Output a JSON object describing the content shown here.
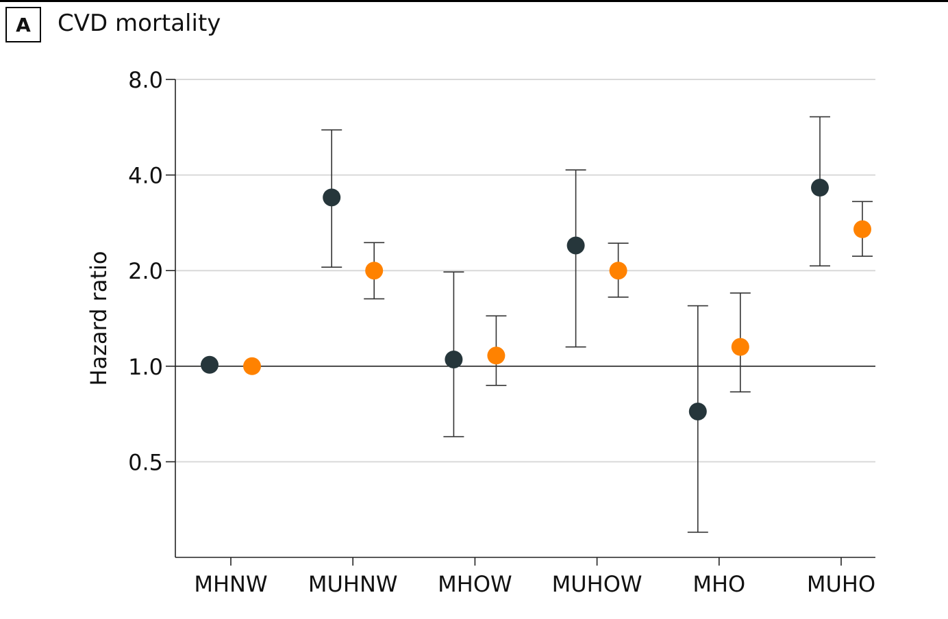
{
  "panel": {
    "label": "A",
    "title": "CVD mortality"
  },
  "chart_data": {
    "type": "scatter",
    "ylabel": "Hazard ratio",
    "xlabel": "",
    "yscale": "log2",
    "ylim": [
      0.25,
      8.0
    ],
    "yticks": [
      {
        "value": 0.5,
        "label": "0.5"
      },
      {
        "value": 1.0,
        "label": "1.0"
      },
      {
        "value": 2.0,
        "label": "2.0"
      },
      {
        "value": 4.0,
        "label": "4.0"
      },
      {
        "value": 8.0,
        "label": "8.0"
      }
    ],
    "reference_line": 1.0,
    "grid": true,
    "categories": [
      "MHNW",
      "MUHNW",
      "MHOW",
      "MUHOW",
      "MHO",
      "MUHO"
    ],
    "series": [
      {
        "color": "#26363b",
        "points": [
          {
            "category": "MHNW",
            "value": 1.01,
            "ci_low": null,
            "ci_high": null
          },
          {
            "category": "MUHNW",
            "value": 3.4,
            "ci_low": 2.05,
            "ci_high": 5.55
          },
          {
            "category": "MHOW",
            "value": 1.05,
            "ci_low": 0.6,
            "ci_high": 1.98
          },
          {
            "category": "MUHOW",
            "value": 2.4,
            "ci_low": 1.15,
            "ci_high": 4.15
          },
          {
            "category": "MHO",
            "value": 0.72,
            "ci_low": 0.3,
            "ci_high": 1.55
          },
          {
            "category": "MUHO",
            "value": 3.65,
            "ci_low": 2.07,
            "ci_high": 6.1
          }
        ]
      },
      {
        "color": "#ff8200",
        "points": [
          {
            "category": "MHNW",
            "value": 1.0,
            "ci_low": null,
            "ci_high": null
          },
          {
            "category": "MUHNW",
            "value": 2.0,
            "ci_low": 1.63,
            "ci_high": 2.45
          },
          {
            "category": "MHOW",
            "value": 1.08,
            "ci_low": 0.87,
            "ci_high": 1.44
          },
          {
            "category": "MUHOW",
            "value": 2.0,
            "ci_low": 1.65,
            "ci_high": 2.44
          },
          {
            "category": "MHO",
            "value": 1.15,
            "ci_low": 0.83,
            "ci_high": 1.7
          },
          {
            "category": "MUHO",
            "value": 2.7,
            "ci_low": 2.22,
            "ci_high": 3.3
          }
        ]
      }
    ]
  }
}
